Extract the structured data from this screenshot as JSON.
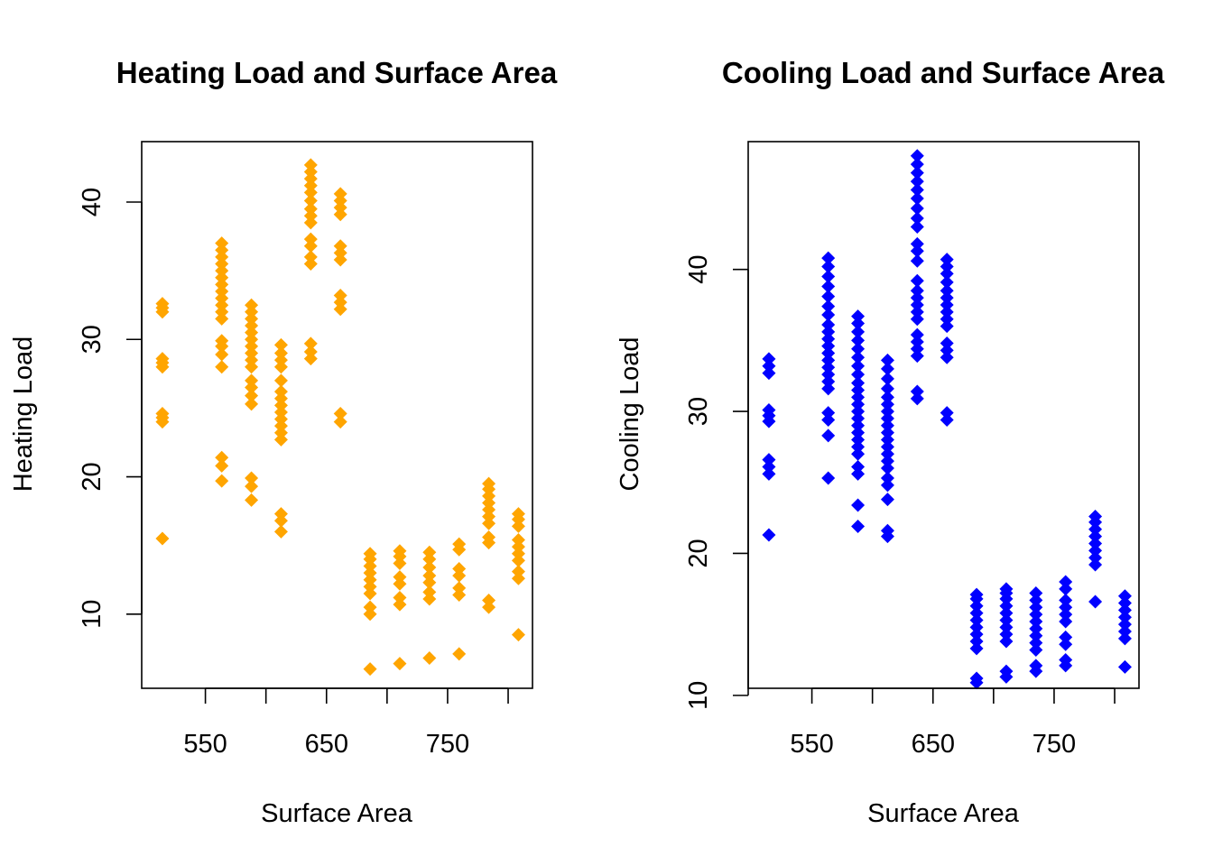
{
  "chart_data": [
    {
      "type": "scatter",
      "title": "Heating Load and Surface Area",
      "xlabel": "Surface Area",
      "ylabel": "Heating Load",
      "xlim": [
        497.4,
        820.1
      ],
      "ylim": [
        4.6,
        44.4
      ],
      "xticks": [
        550,
        600,
        650,
        700,
        750,
        800
      ],
      "xtick_labels": [
        "550",
        "",
        "650",
        "",
        "750",
        ""
      ],
      "yticks": [
        10,
        20,
        30,
        40
      ],
      "ytick_labels": [
        "10",
        "20",
        "30",
        "40"
      ],
      "grid": false,
      "marker": "diamond",
      "color": "#FFA500",
      "points": [
        [
          514.5,
          15.5
        ],
        [
          514.5,
          24.0
        ],
        [
          514.5,
          24.3
        ],
        [
          514.5,
          24.6
        ],
        [
          514.5,
          28.0
        ],
        [
          514.5,
          28.3
        ],
        [
          514.5,
          28.6
        ],
        [
          514.5,
          32.0
        ],
        [
          514.5,
          32.3
        ],
        [
          514.5,
          32.6
        ],
        [
          563.5,
          19.7
        ],
        [
          563.5,
          20.8
        ],
        [
          563.5,
          21.4
        ],
        [
          563.5,
          28.0
        ],
        [
          563.5,
          28.9
        ],
        [
          563.5,
          29.5
        ],
        [
          563.5,
          29.9
        ],
        [
          563.5,
          31.5
        ],
        [
          563.5,
          32.0
        ],
        [
          563.5,
          32.5
        ],
        [
          563.5,
          33.0
        ],
        [
          563.5,
          33.5
        ],
        [
          563.5,
          34.0
        ],
        [
          563.5,
          34.5
        ],
        [
          563.5,
          35.0
        ],
        [
          563.5,
          35.5
        ],
        [
          563.5,
          36.0
        ],
        [
          563.5,
          36.5
        ],
        [
          563.5,
          37.0
        ],
        [
          588.0,
          18.3
        ],
        [
          588.0,
          19.3
        ],
        [
          588.0,
          19.9
        ],
        [
          588.0,
          25.3
        ],
        [
          588.0,
          25.9
        ],
        [
          588.0,
          26.5
        ],
        [
          588.0,
          27.0
        ],
        [
          588.0,
          28.0
        ],
        [
          588.0,
          28.5
        ],
        [
          588.0,
          29.0
        ],
        [
          588.0,
          29.5
        ],
        [
          588.0,
          30.0
        ],
        [
          588.0,
          30.5
        ],
        [
          588.0,
          31.0
        ],
        [
          588.0,
          31.5
        ],
        [
          588.0,
          32.0
        ],
        [
          588.0,
          32.5
        ],
        [
          612.5,
          16.0
        ],
        [
          612.5,
          16.8
        ],
        [
          612.5,
          17.3
        ],
        [
          612.5,
          22.7
        ],
        [
          612.5,
          23.2
        ],
        [
          612.5,
          23.7
        ],
        [
          612.5,
          24.2
        ],
        [
          612.5,
          24.7
        ],
        [
          612.5,
          25.2
        ],
        [
          612.5,
          25.7
        ],
        [
          612.5,
          26.2
        ],
        [
          612.5,
          27.0
        ],
        [
          612.5,
          28.0
        ],
        [
          612.5,
          28.5
        ],
        [
          612.5,
          29.0
        ],
        [
          612.5,
          29.6
        ],
        [
          637.0,
          28.6
        ],
        [
          637.0,
          29.1
        ],
        [
          637.0,
          29.7
        ],
        [
          637.0,
          35.5
        ],
        [
          637.0,
          36.0
        ],
        [
          637.0,
          36.8
        ],
        [
          637.0,
          37.3
        ],
        [
          637.0,
          38.5
        ],
        [
          637.0,
          39.0
        ],
        [
          637.0,
          39.5
        ],
        [
          637.0,
          40.1
        ],
        [
          637.0,
          40.7
        ],
        [
          637.0,
          41.2
        ],
        [
          637.0,
          41.7
        ],
        [
          637.0,
          42.2
        ],
        [
          637.0,
          42.7
        ],
        [
          661.5,
          24.0
        ],
        [
          661.5,
          24.6
        ],
        [
          661.5,
          32.2
        ],
        [
          661.5,
          32.7
        ],
        [
          661.5,
          33.2
        ],
        [
          661.5,
          35.8
        ],
        [
          661.5,
          36.3
        ],
        [
          661.5,
          36.8
        ],
        [
          661.5,
          39.1
        ],
        [
          661.5,
          39.6
        ],
        [
          661.5,
          40.1
        ],
        [
          661.5,
          40.6
        ],
        [
          686.0,
          6.0
        ],
        [
          686.0,
          10.0
        ],
        [
          686.0,
          10.5
        ],
        [
          686.0,
          11.5
        ],
        [
          686.0,
          12.0
        ],
        [
          686.0,
          12.5
        ],
        [
          686.0,
          13.0
        ],
        [
          686.0,
          13.5
        ],
        [
          686.0,
          14.0
        ],
        [
          686.0,
          14.4
        ],
        [
          710.5,
          6.4
        ],
        [
          710.5,
          10.7
        ],
        [
          710.5,
          11.2
        ],
        [
          710.5,
          12.2
        ],
        [
          710.5,
          12.7
        ],
        [
          710.5,
          13.7
        ],
        [
          710.5,
          14.2
        ],
        [
          710.5,
          14.6
        ],
        [
          735.0,
          6.8
        ],
        [
          735.0,
          11.1
        ],
        [
          735.0,
          11.6
        ],
        [
          735.0,
          12.3
        ],
        [
          735.0,
          12.8
        ],
        [
          735.0,
          13.4
        ],
        [
          735.0,
          14.0
        ],
        [
          735.0,
          14.5
        ],
        [
          759.5,
          7.1
        ],
        [
          759.5,
          11.4
        ],
        [
          759.5,
          11.9
        ],
        [
          759.5,
          12.8
        ],
        [
          759.5,
          13.3
        ],
        [
          759.5,
          14.7
        ],
        [
          759.5,
          15.1
        ],
        [
          784.0,
          10.5
        ],
        [
          784.0,
          11.0
        ],
        [
          784.0,
          15.2
        ],
        [
          784.0,
          15.6
        ],
        [
          784.0,
          16.6
        ],
        [
          784.0,
          17.1
        ],
        [
          784.0,
          17.6
        ],
        [
          784.0,
          18.1
        ],
        [
          784.0,
          18.6
        ],
        [
          784.0,
          19.1
        ],
        [
          784.0,
          19.5
        ],
        [
          808.5,
          8.5
        ],
        [
          808.5,
          12.6
        ],
        [
          808.5,
          13.1
        ],
        [
          808.5,
          13.9
        ],
        [
          808.5,
          14.4
        ],
        [
          808.5,
          14.9
        ],
        [
          808.5,
          15.4
        ],
        [
          808.5,
          16.4
        ],
        [
          808.5,
          16.9
        ],
        [
          808.5,
          17.3
        ]
      ]
    },
    {
      "type": "scatter",
      "title": "Cooling Load and Surface Area",
      "xlabel": "Surface Area",
      "ylabel": "Cooling Load",
      "xlim": [
        497.4,
        820.1
      ],
      "ylim": [
        10.5,
        49.0
      ],
      "xticks": [
        550,
        600,
        650,
        700,
        750,
        800
      ],
      "xtick_labels": [
        "550",
        "",
        "650",
        "",
        "750",
        ""
      ],
      "yticks": [
        10,
        20,
        30,
        40
      ],
      "ytick_labels": [
        "10",
        "20",
        "30",
        "40"
      ],
      "grid": false,
      "marker": "diamond",
      "color": "#0000FF",
      "points": [
        [
          514.5,
          21.3
        ],
        [
          514.5,
          25.6
        ],
        [
          514.5,
          26.1
        ],
        [
          514.5,
          26.6
        ],
        [
          514.5,
          29.3
        ],
        [
          514.5,
          29.7
        ],
        [
          514.5,
          30.1
        ],
        [
          514.5,
          32.7
        ],
        [
          514.5,
          33.2
        ],
        [
          514.5,
          33.7
        ],
        [
          563.5,
          25.3
        ],
        [
          563.5,
          28.3
        ],
        [
          563.5,
          29.4
        ],
        [
          563.5,
          29.9
        ],
        [
          563.5,
          31.6
        ],
        [
          563.5,
          32.1
        ],
        [
          563.5,
          32.6
        ],
        [
          563.5,
          33.1
        ],
        [
          563.5,
          33.6
        ],
        [
          563.5,
          34.1
        ],
        [
          563.5,
          34.6
        ],
        [
          563.5,
          35.1
        ],
        [
          563.5,
          35.6
        ],
        [
          563.5,
          36.1
        ],
        [
          563.5,
          36.8
        ],
        [
          563.5,
          37.4
        ],
        [
          563.5,
          38.1
        ],
        [
          563.5,
          38.8
        ],
        [
          563.5,
          39.5
        ],
        [
          563.5,
          40.2
        ],
        [
          563.5,
          40.8
        ],
        [
          588.0,
          21.9
        ],
        [
          588.0,
          23.4
        ],
        [
          588.0,
          25.6
        ],
        [
          588.0,
          26.1
        ],
        [
          588.0,
          27.0
        ],
        [
          588.0,
          27.5
        ],
        [
          588.0,
          28.0
        ],
        [
          588.0,
          28.5
        ],
        [
          588.0,
          29.0
        ],
        [
          588.0,
          29.5
        ],
        [
          588.0,
          30.0
        ],
        [
          588.0,
          30.5
        ],
        [
          588.0,
          31.0
        ],
        [
          588.0,
          31.5
        ],
        [
          588.0,
          32.0
        ],
        [
          588.0,
          32.6
        ],
        [
          588.0,
          33.2
        ],
        [
          588.0,
          33.8
        ],
        [
          588.0,
          34.4
        ],
        [
          588.0,
          35.0
        ],
        [
          588.0,
          35.6
        ],
        [
          588.0,
          36.2
        ],
        [
          588.0,
          36.7
        ],
        [
          612.5,
          21.2
        ],
        [
          612.5,
          21.6
        ],
        [
          612.5,
          23.8
        ],
        [
          612.5,
          24.8
        ],
        [
          612.5,
          25.3
        ],
        [
          612.5,
          26.0
        ],
        [
          612.5,
          26.5
        ],
        [
          612.5,
          27.0
        ],
        [
          612.5,
          27.5
        ],
        [
          612.5,
          28.0
        ],
        [
          612.5,
          28.5
        ],
        [
          612.5,
          29.0
        ],
        [
          612.5,
          29.5
        ],
        [
          612.5,
          30.0
        ],
        [
          612.5,
          30.5
        ],
        [
          612.5,
          31.0
        ],
        [
          612.5,
          31.6
        ],
        [
          612.5,
          32.3
        ],
        [
          612.5,
          33.0
        ],
        [
          612.5,
          33.6
        ],
        [
          637.0,
          30.9
        ],
        [
          637.0,
          31.4
        ],
        [
          637.0,
          33.9
        ],
        [
          637.0,
          34.4
        ],
        [
          637.0,
          34.9
        ],
        [
          637.0,
          35.4
        ],
        [
          637.0,
          36.5
        ],
        [
          637.0,
          37.0
        ],
        [
          637.0,
          37.5
        ],
        [
          637.0,
          38.0
        ],
        [
          637.0,
          38.5
        ],
        [
          637.0,
          39.2
        ],
        [
          637.0,
          40.6
        ],
        [
          637.0,
          41.3
        ],
        [
          637.0,
          41.8
        ],
        [
          637.0,
          43.0
        ],
        [
          637.0,
          43.6
        ],
        [
          637.0,
          44.3
        ],
        [
          637.0,
          45.0
        ],
        [
          637.0,
          45.6
        ],
        [
          637.0,
          46.2
        ],
        [
          637.0,
          46.8
        ],
        [
          637.0,
          47.4
        ],
        [
          637.0,
          48.0
        ],
        [
          661.5,
          29.4
        ],
        [
          661.5,
          29.9
        ],
        [
          661.5,
          33.8
        ],
        [
          661.5,
          34.3
        ],
        [
          661.5,
          34.8
        ],
        [
          661.5,
          36.0
        ],
        [
          661.5,
          36.5
        ],
        [
          661.5,
          37.0
        ],
        [
          661.5,
          37.5
        ],
        [
          661.5,
          38.0
        ],
        [
          661.5,
          38.5
        ],
        [
          661.5,
          39.1
        ],
        [
          661.5,
          39.7
        ],
        [
          661.5,
          40.2
        ],
        [
          661.5,
          40.7
        ],
        [
          686.0,
          10.9
        ],
        [
          686.0,
          11.2
        ],
        [
          686.0,
          13.3
        ],
        [
          686.0,
          13.8
        ],
        [
          686.0,
          14.3
        ],
        [
          686.0,
          14.8
        ],
        [
          686.0,
          15.3
        ],
        [
          686.0,
          15.8
        ],
        [
          686.0,
          16.3
        ],
        [
          686.0,
          16.8
        ],
        [
          686.0,
          17.1
        ],
        [
          710.5,
          11.3
        ],
        [
          710.5,
          11.7
        ],
        [
          710.5,
          13.8
        ],
        [
          710.5,
          14.3
        ],
        [
          710.5,
          14.8
        ],
        [
          710.5,
          15.3
        ],
        [
          710.5,
          15.8
        ],
        [
          710.5,
          16.3
        ],
        [
          710.5,
          16.8
        ],
        [
          710.5,
          17.2
        ],
        [
          710.5,
          17.5
        ],
        [
          735.0,
          11.7
        ],
        [
          735.0,
          12.1
        ],
        [
          735.0,
          13.2
        ],
        [
          735.0,
          13.7
        ],
        [
          735.0,
          14.2
        ],
        [
          735.0,
          14.7
        ],
        [
          735.0,
          15.2
        ],
        [
          735.0,
          15.7
        ],
        [
          735.0,
          16.2
        ],
        [
          735.0,
          16.7
        ],
        [
          735.0,
          17.2
        ],
        [
          759.5,
          12.1
        ],
        [
          759.5,
          12.5
        ],
        [
          759.5,
          13.6
        ],
        [
          759.5,
          14.1
        ],
        [
          759.5,
          15.2
        ],
        [
          759.5,
          15.7
        ],
        [
          759.5,
          16.2
        ],
        [
          759.5,
          16.7
        ],
        [
          759.5,
          17.5
        ],
        [
          759.5,
          18.0
        ],
        [
          784.0,
          16.6
        ],
        [
          784.0,
          19.2
        ],
        [
          784.0,
          19.7
        ],
        [
          784.0,
          20.2
        ],
        [
          784.0,
          20.7
        ],
        [
          784.0,
          21.2
        ],
        [
          784.0,
          21.7
        ],
        [
          784.0,
          22.2
        ],
        [
          784.0,
          22.6
        ],
        [
          808.5,
          12.0
        ],
        [
          808.5,
          14.0
        ],
        [
          808.5,
          14.5
        ],
        [
          808.5,
          15.0
        ],
        [
          808.5,
          15.5
        ],
        [
          808.5,
          16.0
        ],
        [
          808.5,
          16.5
        ],
        [
          808.5,
          17.0
        ]
      ]
    }
  ]
}
